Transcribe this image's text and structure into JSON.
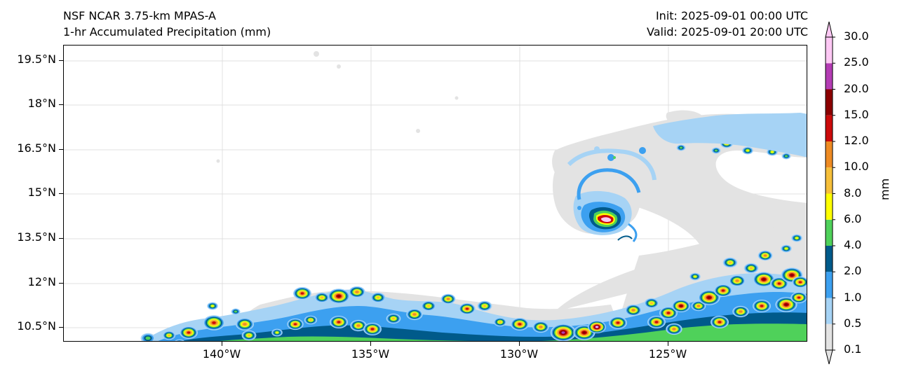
{
  "header": {
    "model": "NSF NCAR 3.75-km MPAS-A",
    "field": "1-hr Accumulated Precipitation (mm)",
    "init": "Init: 2025-09-01 00:00 UTC",
    "valid": "Valid: 2025-09-01 20:00 UTC"
  },
  "map": {
    "lat_labels": [
      "19.5°N",
      "18°N",
      "16.5°N",
      "15°N",
      "13.5°N",
      "12°N",
      "10.5°N"
    ],
    "lon_labels": [
      "140°W",
      "135°W",
      "130°W",
      "125°W"
    ],
    "gridlines": true
  },
  "colorbar": {
    "units": "mm",
    "levels": [
      "0.1",
      "0.5",
      "1.0",
      "2.0",
      "4.0",
      "6.0",
      "8.0",
      "10.0",
      "12.0",
      "15.0",
      "20.0",
      "25.0",
      "30.0"
    ],
    "colors": [
      "#e3e3e3",
      "#a6d3f5",
      "#3ca0f0",
      "#005a8a",
      "#4fd15a",
      "#ffff00",
      "#f6bf3a",
      "#ee8b23",
      "#cc0a0a",
      "#8c0000",
      "#b43cb4",
      "#fdc8f4"
    ]
  }
}
